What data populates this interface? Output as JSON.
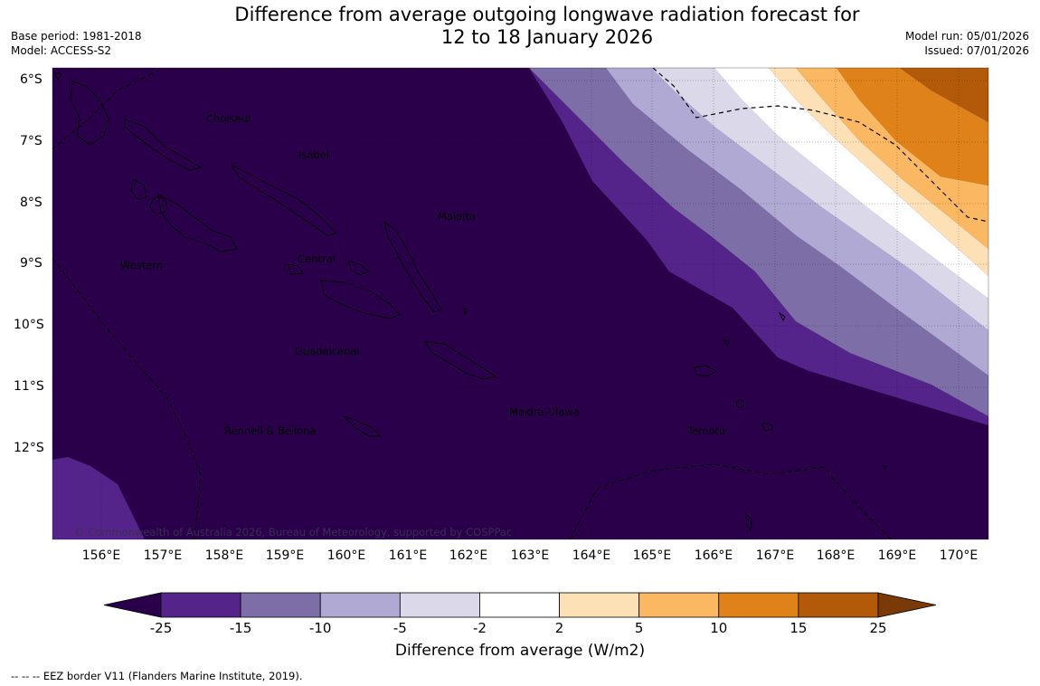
{
  "title_line1": "Difference from average outgoing longwave radiation forecast for",
  "title_line2": "12 to 18 January 2026",
  "base_period": "Base period: 1981-2018",
  "model": "Model: ACCESS-S2",
  "model_run": "Model run: 05/01/2026",
  "issued": "Issued: 07/01/2026",
  "lat_labels": [
    "6°S",
    "7°S",
    "8°S",
    "9°S",
    "10°S",
    "11°S",
    "12°S"
  ],
  "lon_labels": [
    "156°E",
    "157°E",
    "158°E",
    "159°E",
    "160°E",
    "161°E",
    "162°E",
    "163°E",
    "164°E",
    "165°E",
    "166°E",
    "167°E",
    "168°E",
    "169°E",
    "170°E"
  ],
  "regions": {
    "choiseul": "Choiseul",
    "isabel": "Isabel",
    "malaita": "Malaita",
    "western": "Western",
    "central": "Central",
    "guadalcanal": "Guadalcanal",
    "makira_ulawa": "Makira-Ulawa",
    "rennell_bellona": "Rennell & Bellona",
    "temotu": "Temotu"
  },
  "copyright": "© Commonwealth of Australia 2026, Bureau of Meteorology, supported by COSPPac",
  "colorbar": {
    "ticks": [
      "-25",
      "-15",
      "-10",
      "-5",
      "-2",
      "2",
      "5",
      "10",
      "15",
      "25"
    ],
    "colors": [
      "#2a004a",
      "#55248a",
      "#7e6ea8",
      "#b0a9d3",
      "#dbd8ea",
      "#ffffff",
      "#fde0b5",
      "#fbb862",
      "#e0821a",
      "#b35a0a",
      "#7a3a08"
    ],
    "label": "Difference from average (W/m2)"
  },
  "footer": "--  --  -- EEZ border V11 (Flanders Marine Institute, 2019)."
}
